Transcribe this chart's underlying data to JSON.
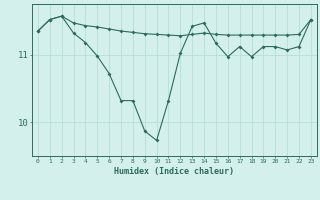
{
  "xlabel": "Humidex (Indice chaleur)",
  "ylabel": "",
  "background_color": "#d4f0ec",
  "line_color": "#2d6b5e",
  "grid_color": "#b8ddd8",
  "hours": [
    0,
    1,
    2,
    3,
    4,
    5,
    6,
    7,
    8,
    9,
    10,
    11,
    12,
    13,
    14,
    15,
    16,
    17,
    18,
    19,
    20,
    21,
    22,
    23
  ],
  "line1": [
    11.35,
    11.52,
    11.57,
    11.47,
    11.43,
    11.41,
    11.38,
    11.35,
    11.33,
    11.31,
    11.3,
    11.29,
    11.28,
    11.3,
    11.32,
    11.3,
    11.29,
    11.29,
    11.29,
    11.29,
    11.29,
    11.29,
    11.3,
    11.52
  ],
  "line2": [
    11.35,
    11.52,
    11.57,
    11.32,
    11.18,
    10.98,
    10.72,
    10.32,
    10.32,
    9.87,
    9.73,
    10.32,
    11.02,
    11.42,
    11.47,
    11.17,
    10.97,
    11.12,
    10.97,
    11.12,
    11.12,
    11.07,
    11.12,
    11.52
  ],
  "ylim": [
    9.5,
    11.75
  ],
  "yticks": [
    10,
    11
  ],
  "xlim": [
    -0.5,
    23.5
  ]
}
